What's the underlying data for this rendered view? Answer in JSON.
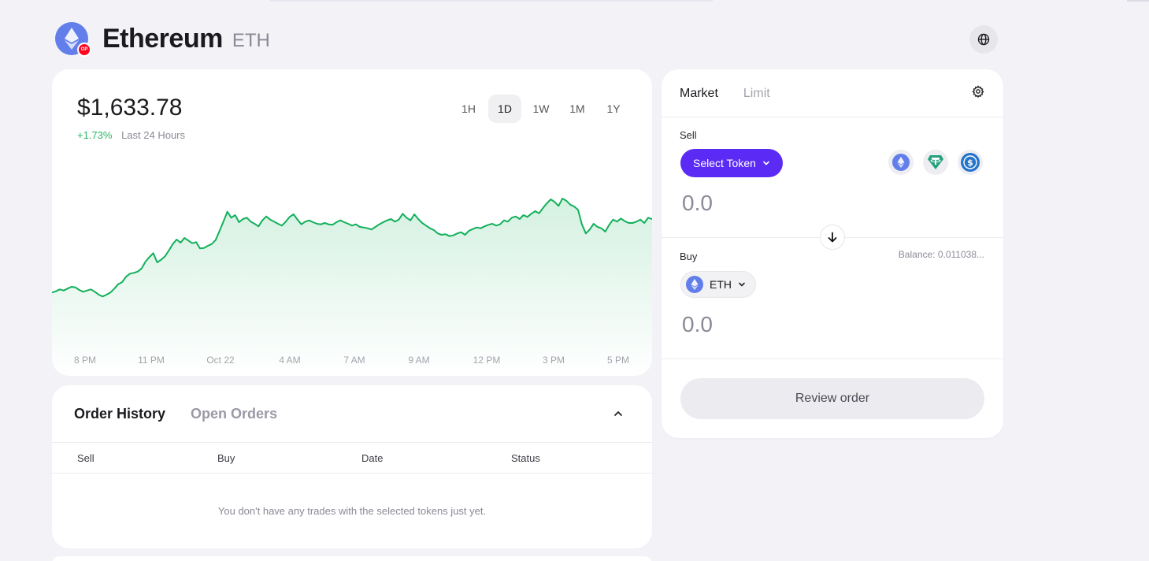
{
  "header": {
    "title": "Ethereum",
    "symbol": "ETH",
    "network_badge": "OP",
    "token_icon": "ethereum-icon",
    "globe_icon": "globe-icon"
  },
  "price": {
    "value": "$1,633.78",
    "change": "+1.73%",
    "change_label": "Last 24 Hours",
    "ranges": [
      "1H",
      "1D",
      "1W",
      "1M",
      "1Y"
    ],
    "active_range": "1D"
  },
  "chart_data": {
    "type": "area",
    "line_color": "#12b05a",
    "x_tick_labels": [
      "8 PM",
      "11 PM",
      "Oct 22",
      "4 AM",
      "7 AM",
      "9 AM",
      "12 PM",
      "3 PM",
      "5 PM"
    ],
    "values": [
      1605.0,
      1605.5,
      1606.2,
      1605.8,
      1606.5,
      1607.2,
      1607.0,
      1606.0,
      1605.3,
      1605.8,
      1606.2,
      1605.3,
      1604.2,
      1603.5,
      1604.2,
      1605.0,
      1606.5,
      1608.2,
      1609.0,
      1611.0,
      1612.2,
      1612.5,
      1613.0,
      1614.2,
      1616.8,
      1618.5,
      1620.0,
      1616.5,
      1617.5,
      1618.8,
      1621.0,
      1623.5,
      1625.2,
      1624.0,
      1625.8,
      1624.8,
      1623.8,
      1624.2,
      1621.8,
      1622.0,
      1622.8,
      1623.5,
      1625.0,
      1628.5,
      1632.0,
      1635.8,
      1633.5,
      1634.5,
      1631.8,
      1633.0,
      1633.5,
      1632.0,
      1631.2,
      1630.2,
      1632.5,
      1634.0,
      1632.8,
      1632.0,
      1631.2,
      1630.5,
      1632.0,
      1633.8,
      1634.8,
      1632.8,
      1631.0,
      1632.0,
      1632.5,
      1631.8,
      1631.2,
      1631.0,
      1631.5,
      1631.0,
      1630.8,
      1631.8,
      1632.5,
      1631.8,
      1631.2,
      1630.5,
      1631.0,
      1630.0,
      1629.8,
      1629.5,
      1629.0,
      1630.0,
      1631.0,
      1631.8,
      1632.5,
      1633.0,
      1632.0,
      1632.8,
      1635.0,
      1633.5,
      1632.5,
      1634.8,
      1633.0,
      1631.5,
      1630.5,
      1629.5,
      1628.8,
      1627.5,
      1627.0,
      1627.2,
      1626.5,
      1626.8,
      1627.5,
      1628.0,
      1627.0,
      1628.5,
      1629.2,
      1629.8,
      1629.5,
      1630.2,
      1630.8,
      1631.2,
      1630.5,
      1631.0,
      1632.5,
      1632.0,
      1633.5,
      1634.0,
      1633.0,
      1634.5,
      1633.8,
      1635.0,
      1636.0,
      1635.2,
      1637.2,
      1639.0,
      1640.5,
      1639.5,
      1638.0,
      1640.8,
      1640.0,
      1638.5,
      1637.8,
      1636.5,
      1631.0,
      1627.5,
      1629.0,
      1631.2,
      1630.0,
      1629.5,
      1628.2,
      1630.8,
      1632.8,
      1632.0,
      1633.2,
      1632.2,
      1631.5,
      1631.5,
      1632.0,
      1632.8,
      1631.5,
      1633.5,
      1633.0
    ]
  },
  "orders": {
    "tabs": [
      "Order History",
      "Open Orders"
    ],
    "active_tab": "Order History",
    "columns": [
      "Sell",
      "Buy",
      "Date",
      "Status"
    ],
    "empty_message": "You don't have any trades with the selected tokens just yet."
  },
  "swap": {
    "tabs": [
      "Market",
      "Limit"
    ],
    "active_tab": "Market",
    "sell_label": "Sell",
    "select_token_label": "Select Token",
    "quick_tokens": [
      "ethereum-icon",
      "tether-icon",
      "usdc-icon"
    ],
    "sell_amount": "0.0",
    "buy_label": "Buy",
    "balance_text": "Balance: 0.011038...",
    "buy_token": "ETH",
    "buy_amount": "0.0",
    "review_label": "Review order"
  }
}
